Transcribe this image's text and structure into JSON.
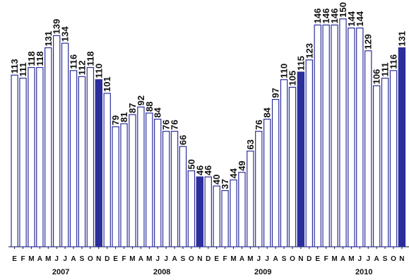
{
  "chart_data": {
    "type": "bar",
    "title": "",
    "xlabel": "",
    "ylabel": "",
    "ylim": [
      0,
      155
    ],
    "grid": false,
    "legend": "none",
    "categories": [
      "E",
      "F",
      "M",
      "A",
      "M",
      "J",
      "J",
      "A",
      "S",
      "O",
      "N",
      "D",
      "E",
      "F",
      "M",
      "A",
      "M",
      "J",
      "J",
      "A",
      "S",
      "O",
      "N",
      "D",
      "E",
      "F",
      "M",
      "A",
      "M",
      "J",
      "J",
      "A",
      "S",
      "O",
      "N",
      "D",
      "E",
      "F",
      "M",
      "A",
      "M",
      "J",
      "J",
      "A",
      "S",
      "O",
      "N"
    ],
    "years": [
      "2007",
      "2008",
      "2009",
      "2010"
    ],
    "values": [
      113,
      111,
      118,
      118,
      131,
      139,
      134,
      116,
      112,
      118,
      110,
      101,
      79,
      81,
      87,
      92,
      88,
      84,
      76,
      76,
      66,
      50,
      46,
      46,
      40,
      37,
      44,
      49,
      63,
      76,
      84,
      97,
      110,
      105,
      115,
      123,
      146,
      146,
      146,
      150,
      144,
      144,
      129,
      106,
      111,
      116,
      131
    ],
    "value_labels": [
      "113",
      "111",
      "118",
      "118",
      "131",
      "139",
      "134",
      "116",
      "112",
      "118",
      "110",
      "101",
      "79",
      "81",
      "87",
      "92",
      "88",
      "84",
      "76",
      "76",
      "66",
      "50",
      "46",
      "46",
      "40",
      "37",
      "44",
      "49",
      "63",
      "76",
      "84",
      "97",
      "110",
      "105",
      "115",
      "123",
      "146",
      "146",
      "146",
      "150",
      "144",
      "144",
      "129",
      "106",
      "111",
      "116",
      "131"
    ],
    "month_label_text": [
      "E",
      "F",
      "M",
      "A",
      "M",
      "J",
      "J",
      "A",
      "S",
      "O",
      "N",
      "D",
      "E",
      "F",
      "M",
      "A",
      "M",
      "J",
      "J",
      "A",
      "S",
      "O",
      "N",
      "D",
      "E",
      "F",
      "M",
      "A",
      "M",
      "J",
      "J",
      "A",
      "S",
      "O",
      "N",
      "D",
      "E",
      "F",
      "M",
      "A",
      "M",
      "J",
      "J",
      "A",
      "S",
      "O",
      "N"
    ],
    "highlight_indices": [
      10,
      22,
      34,
      46
    ],
    "colors": {
      "bar_fill": "#ffffff",
      "bar_stroke": "#2b2e9b",
      "highlight_fill": "#2b2e9b",
      "text": "#111111"
    }
  }
}
